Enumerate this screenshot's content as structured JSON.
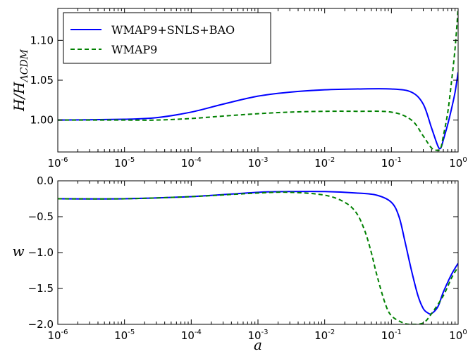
{
  "chart_data": [
    {
      "type": "line",
      "title": "",
      "xlabel": "",
      "ylabel": "H/H_ΛCDM",
      "ylabel_main": "H/H",
      "ylabel_sub": "ΛCDM",
      "xscale": "log",
      "xlim": [
        1e-06,
        1
      ],
      "ylim": [
        0.96,
        1.14
      ],
      "xticks": [
        1e-06,
        1e-05,
        0.0001,
        0.001,
        0.01,
        0.1,
        1
      ],
      "xtick_labels": [
        {
          "base": "10",
          "exp": "-6"
        },
        {
          "base": "10",
          "exp": "-5"
        },
        {
          "base": "10",
          "exp": "-4"
        },
        {
          "base": "10",
          "exp": "-3"
        },
        {
          "base": "10",
          "exp": "-2"
        },
        {
          "base": "10",
          "exp": "-1"
        },
        {
          "base": "10",
          "exp": "0"
        }
      ],
      "yticks": [
        1.0,
        1.05,
        1.1
      ],
      "ytick_labels": [
        "1.00",
        "1.05",
        "1.10"
      ],
      "legend": {
        "location": "upper left"
      },
      "series": [
        {
          "name": "WMAP9+SNLS+BAO",
          "color": "#0000ff",
          "style": "solid",
          "points": [
            [
              1e-06,
              1.0
            ],
            [
              1e-05,
              1.001
            ],
            [
              3e-05,
              1.003
            ],
            [
              0.0001,
              1.01
            ],
            [
              0.0003,
              1.02
            ],
            [
              0.001,
              1.03
            ],
            [
              0.003,
              1.035
            ],
            [
              0.01,
              1.038
            ],
            [
              0.03,
              1.039
            ],
            [
              0.1,
              1.039
            ],
            [
              0.2,
              1.035
            ],
            [
              0.3,
              1.02
            ],
            [
              0.4,
              0.99
            ],
            [
              0.5,
              0.967
            ],
            [
              0.55,
              0.965
            ],
            [
              0.6,
              0.975
            ],
            [
              0.7,
              0.995
            ],
            [
              0.8,
              1.015
            ],
            [
              0.9,
              1.035
            ],
            [
              1.0,
              1.06
            ]
          ]
        },
        {
          "name": "WMAP9",
          "color": "#008000",
          "style": "dashed",
          "points": [
            [
              1e-06,
              1.0
            ],
            [
              1e-05,
              1.0
            ],
            [
              3e-05,
              1.0
            ],
            [
              0.0001,
              1.002
            ],
            [
              0.0003,
              1.005
            ],
            [
              0.001,
              1.008
            ],
            [
              0.003,
              1.01
            ],
            [
              0.01,
              1.011
            ],
            [
              0.03,
              1.011
            ],
            [
              0.1,
              1.01
            ],
            [
              0.2,
              1.0
            ],
            [
              0.3,
              0.98
            ],
            [
              0.4,
              0.965
            ],
            [
              0.5,
              0.962
            ],
            [
              0.55,
              0.965
            ],
            [
              0.6,
              0.98
            ],
            [
              0.7,
              1.01
            ],
            [
              0.8,
              1.05
            ],
            [
              0.9,
              1.09
            ],
            [
              1.0,
              1.14
            ]
          ]
        }
      ]
    },
    {
      "type": "line",
      "title": "",
      "xlabel": "a",
      "ylabel": "w",
      "xscale": "log",
      "xlim": [
        1e-06,
        1
      ],
      "ylim": [
        -2.0,
        0.0
      ],
      "xticks": [
        1e-06,
        1e-05,
        0.0001,
        0.001,
        0.01,
        0.1,
        1
      ],
      "xtick_labels": [
        {
          "base": "10",
          "exp": "-6"
        },
        {
          "base": "10",
          "exp": "-5"
        },
        {
          "base": "10",
          "exp": "-4"
        },
        {
          "base": "10",
          "exp": "-3"
        },
        {
          "base": "10",
          "exp": "-2"
        },
        {
          "base": "10",
          "exp": "-1"
        },
        {
          "base": "10",
          "exp": "0"
        }
      ],
      "yticks": [
        0.0,
        -0.5,
        -1.0,
        -1.5,
        -2.0
      ],
      "ytick_labels": [
        "0.0",
        "−0.5",
        "−1.0",
        "−1.5",
        "−2.0"
      ],
      "series": [
        {
          "name": "WMAP9+SNLS+BAO",
          "color": "#0000ff",
          "style": "solid",
          "points": [
            [
              1e-06,
              -0.25
            ],
            [
              1e-05,
              -0.25
            ],
            [
              0.0001,
              -0.22
            ],
            [
              0.001,
              -0.16
            ],
            [
              0.003,
              -0.15
            ],
            [
              0.01,
              -0.15
            ],
            [
              0.03,
              -0.17
            ],
            [
              0.06,
              -0.2
            ],
            [
              0.1,
              -0.3
            ],
            [
              0.13,
              -0.5
            ],
            [
              0.16,
              -0.85
            ],
            [
              0.2,
              -1.25
            ],
            [
              0.25,
              -1.6
            ],
            [
              0.3,
              -1.78
            ],
            [
              0.35,
              -1.84
            ],
            [
              0.4,
              -1.85
            ],
            [
              0.5,
              -1.75
            ],
            [
              0.6,
              -1.55
            ],
            [
              0.8,
              -1.3
            ],
            [
              1.0,
              -1.15
            ]
          ]
        },
        {
          "name": "WMAP9",
          "color": "#008000",
          "style": "dashed",
          "points": [
            [
              1e-06,
              -0.25
            ],
            [
              1e-05,
              -0.25
            ],
            [
              0.0001,
              -0.22
            ],
            [
              0.001,
              -0.17
            ],
            [
              0.003,
              -0.16
            ],
            [
              0.01,
              -0.2
            ],
            [
              0.02,
              -0.3
            ],
            [
              0.03,
              -0.45
            ],
            [
              0.04,
              -0.7
            ],
            [
              0.05,
              -1.0
            ],
            [
              0.06,
              -1.3
            ],
            [
              0.08,
              -1.7
            ],
            [
              0.1,
              -1.88
            ],
            [
              0.15,
              -1.98
            ],
            [
              0.2,
              -2.0
            ],
            [
              0.3,
              -1.98
            ],
            [
              0.4,
              -1.85
            ],
            [
              0.6,
              -1.6
            ],
            [
              0.8,
              -1.35
            ],
            [
              1.0,
              -1.2
            ]
          ]
        }
      ]
    }
  ]
}
